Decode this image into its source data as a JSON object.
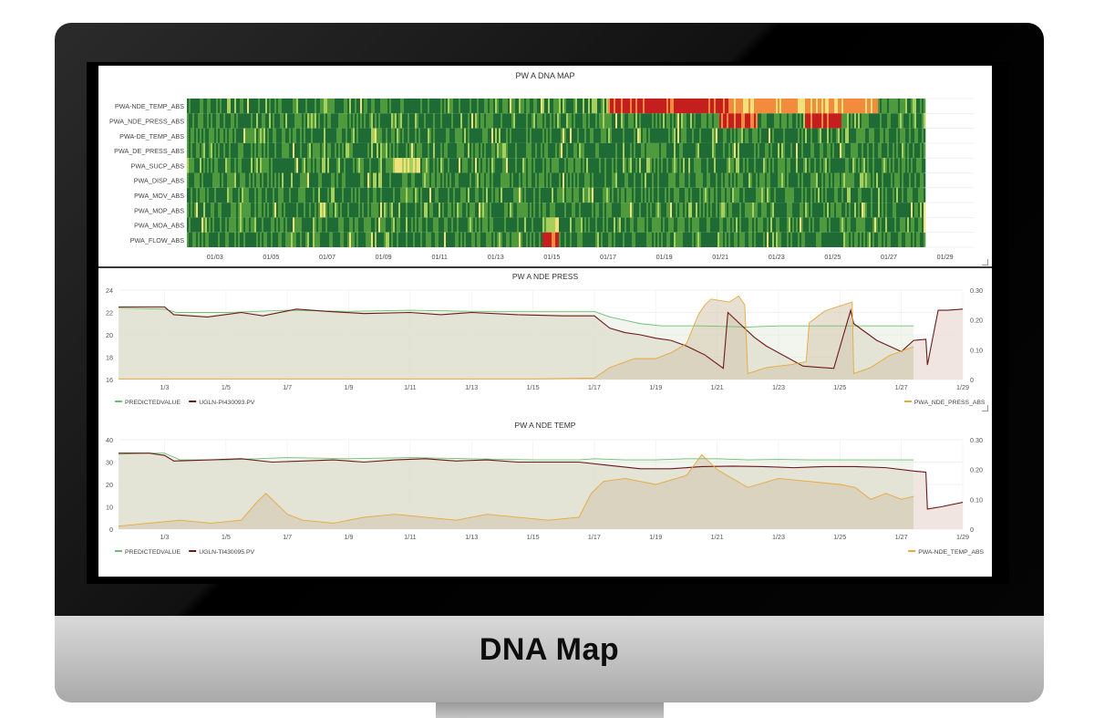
{
  "chin": {
    "label": "DNA Map"
  },
  "heatmap": {
    "title": "PW A DNA MAP",
    "rows": [
      "PWA-NDE_TEMP_ABS",
      "PWA_NDE_PRESS_ABS",
      "PWA-DE_TEMP_ABS",
      "PWA_DE_PRESS_ABS",
      "PWA_SUCP_ABS",
      "PWA_DISP_ABS",
      "PWA_MOV_ABS",
      "PWA_MOP_ABS",
      "PWA_MOA_ABS",
      "PWA_FLOW_ABS"
    ],
    "x_ticks": [
      "01/03",
      "01/05",
      "01/07",
      "01/09",
      "01/11",
      "01/13",
      "01/15",
      "01/17",
      "01/19",
      "01/21",
      "01/23",
      "01/25",
      "01/27",
      "01/29"
    ]
  },
  "chart_data": [
    {
      "type": "heatmap",
      "title": "PW A DNA MAP",
      "y_categories": [
        "PWA-NDE_TEMP_ABS",
        "PWA_NDE_PRESS_ABS",
        "PWA-DE_TEMP_ABS",
        "PWA_DE_PRESS_ABS",
        "PWA_SUCP_ABS",
        "PWA_DISP_ABS",
        "PWA_MOV_ABS",
        "PWA_MOP_ABS",
        "PWA_MOA_ABS",
        "PWA_FLOW_ABS"
      ],
      "x_ticks": [
        "01/03",
        "01/05",
        "01/07",
        "01/09",
        "01/11",
        "01/13",
        "01/15",
        "01/17",
        "01/19",
        "01/21",
        "01/23",
        "01/25",
        "01/27",
        "01/29"
      ],
      "x_range": [
        "01/02",
        "01/28"
      ],
      "color_scale": [
        "#1e6b35",
        "#4f9a3c",
        "#a8cf5a",
        "#f2e07a",
        "#f28c3c",
        "#c41e1e"
      ],
      "hot_spots": [
        {
          "row": 0,
          "x_start": 17.0,
          "x_end": 21.3,
          "level": 5
        },
        {
          "row": 0,
          "x_start": 21.3,
          "x_end": 23.3,
          "level": 4
        },
        {
          "row": 0,
          "x_start": 23.3,
          "x_end": 26.6,
          "level": 4
        },
        {
          "row": 1,
          "x_start": 20.9,
          "x_end": 22.3,
          "level": 5
        },
        {
          "row": 1,
          "x_start": 24.0,
          "x_end": 25.3,
          "level": 5
        },
        {
          "row": 4,
          "x_start": 9.3,
          "x_end": 10.3,
          "level": 3
        },
        {
          "row": 9,
          "x_start": 14.6,
          "x_end": 15.2,
          "level": 5
        },
        {
          "row": 8,
          "x_start": 14.6,
          "x_end": 15.2,
          "level": 2
        }
      ]
    },
    {
      "type": "line",
      "title": "PW A NDE PRESS",
      "x_ticks": [
        "1/3",
        "1/5",
        "1/7",
        "1/9",
        "1/11",
        "1/13",
        "1/15",
        "1/17",
        "1/19",
        "1/21",
        "1/23",
        "1/25",
        "1/27",
        "1/29"
      ],
      "ylim": [
        16,
        24
      ],
      "y_ticks": [
        16,
        18,
        20,
        22,
        24
      ],
      "y2lim": [
        0,
        0.3
      ],
      "y2_ticks": [
        "0",
        "0.10",
        "0.20",
        "0.30"
      ],
      "legend_left": [
        "PREDICTEDVALUE",
        "UGLN-PI430093.PV"
      ],
      "legend_right": [
        "PWA_NDE_PRESS_ABS"
      ],
      "series": [
        {
          "name": "PREDICTEDVALUE",
          "axis": "left",
          "color": "#6fbf6f",
          "x": [
            1.5,
            3.0,
            3.4,
            5,
            7,
            9,
            11,
            13,
            15,
            17,
            17.5,
            18,
            18.5,
            19.2,
            20.5,
            22,
            23,
            24,
            25,
            26,
            27.4
          ],
          "y": [
            22.4,
            22.3,
            22.0,
            22.0,
            22.2,
            22.1,
            22.2,
            22.1,
            22.1,
            22.1,
            21.6,
            21.3,
            21.0,
            20.8,
            20.8,
            20.7,
            20.8,
            20.8,
            20.8,
            20.8,
            20.8
          ]
        },
        {
          "name": "UGLN-PI430093.PV",
          "axis": "left",
          "color": "#6b1a1a",
          "x": [
            1.5,
            3.0,
            3.3,
            4.4,
            5.5,
            6.2,
            7.3,
            8.3,
            9.5,
            11,
            12,
            13,
            14.5,
            16,
            17,
            17.5,
            18.0,
            18.5,
            19,
            19.5,
            20,
            20.6,
            21.2,
            21.35,
            22.2,
            22.6,
            23.8,
            24.8,
            25.35,
            25.45,
            26.2,
            27.0,
            27.4,
            27.8,
            27.85,
            28.2,
            28.3,
            28.5,
            29.0
          ],
          "y": [
            22.5,
            22.5,
            21.8,
            21.6,
            22.0,
            21.7,
            22.3,
            22.1,
            21.9,
            22.0,
            21.8,
            22.0,
            21.8,
            21.7,
            21.7,
            20.6,
            20.2,
            20.0,
            19.7,
            19.5,
            19.0,
            18.2,
            17.0,
            22.0,
            19.8,
            19.0,
            17.2,
            17.0,
            22.2,
            21.0,
            19.5,
            18.5,
            19.5,
            19.6,
            17.3,
            22.2,
            22.2,
            22.2,
            22.3
          ]
        },
        {
          "name": "PWA_NDE_PRESS_ABS",
          "axis": "right",
          "color": "#e8a93a",
          "x": [
            1.5,
            5,
            10,
            15,
            17.0,
            17.5,
            18.3,
            19,
            19.5,
            20,
            20.4,
            20.6,
            20.8,
            21.4,
            21.7,
            21.9,
            22.0,
            22.6,
            23.4,
            23.9,
            24.0,
            24.5,
            25.1,
            25.4,
            25.45,
            26.0,
            26.6,
            27.4
          ],
          "y": [
            0.002,
            0.002,
            0.002,
            0.002,
            0.005,
            0.04,
            0.07,
            0.07,
            0.09,
            0.12,
            0.22,
            0.25,
            0.27,
            0.26,
            0.28,
            0.25,
            0.02,
            0.04,
            0.05,
            0.06,
            0.19,
            0.23,
            0.25,
            0.26,
            0.02,
            0.04,
            0.08,
            0.11
          ]
        }
      ]
    },
    {
      "type": "line",
      "title": "PW A NDE TEMP",
      "x_ticks": [
        "1/3",
        "1/5",
        "1/7",
        "1/9",
        "1/11",
        "1/13",
        "1/15",
        "1/17",
        "1/19",
        "1/21",
        "1/23",
        "1/25",
        "1/27",
        "1/29"
      ],
      "ylim": [
        0,
        40
      ],
      "y_ticks": [
        0,
        10,
        20,
        30,
        40
      ],
      "y2lim": [
        0,
        0.3
      ],
      "y2_ticks": [
        "0",
        "0.10",
        "0.20",
        "0.30"
      ],
      "legend_left": [
        "PREDICTEDVALUE",
        "UGLN-TI430095.PV"
      ],
      "legend_right": [
        "PWA-NDE_TEMP_ABS"
      ],
      "series": [
        {
          "name": "PREDICTEDVALUE",
          "axis": "left",
          "color": "#6fbf6f",
          "x": [
            1.5,
            2.5,
            3.0,
            3.5,
            5,
            7,
            9,
            11,
            13,
            15,
            16.5,
            17.0,
            18,
            19,
            20,
            21,
            22,
            23,
            24,
            25,
            26,
            27.4
          ],
          "y": [
            33.5,
            34,
            34,
            31,
            31,
            32,
            31.5,
            32,
            31.5,
            31,
            31,
            31.5,
            31,
            31,
            31.5,
            31.5,
            31,
            31.2,
            31,
            31,
            31,
            31
          ]
        },
        {
          "name": "UGLN-TI430095.PV",
          "axis": "left",
          "color": "#6b1a1a",
          "x": [
            1.5,
            2.5,
            3.0,
            3.3,
            4.5,
            5.5,
            6.5,
            7.5,
            8.5,
            9.5,
            10.5,
            11.5,
            12.5,
            13.5,
            14.5,
            15.5,
            16.5,
            17.5,
            18.5,
            19.5,
            20.5,
            21.5,
            22.5,
            23.5,
            24.5,
            25.5,
            26.5,
            27.4,
            27.8,
            27.85,
            28.3,
            29.0
          ],
          "y": [
            34,
            34,
            33,
            30.5,
            31,
            31.5,
            30,
            30.5,
            31,
            30,
            31,
            31.5,
            30.5,
            31,
            30,
            30,
            30,
            28.5,
            27,
            27,
            28,
            28.2,
            28,
            27.5,
            28,
            28,
            27.5,
            26,
            25.5,
            9,
            10,
            12
          ]
        },
        {
          "name": "PWA-NDE_TEMP_ABS",
          "axis": "right",
          "color": "#e8a93a",
          "x": [
            1.5,
            2.5,
            3.5,
            4.5,
            5.5,
            6.0,
            6.3,
            7.0,
            7.5,
            8.5,
            9.5,
            10.5,
            11.5,
            12.5,
            13.5,
            14.5,
            15.5,
            16.5,
            16.9,
            17.3,
            18,
            19,
            20,
            20.5,
            21,
            21.5,
            22,
            23,
            24,
            25,
            25.5,
            26,
            26.5,
            27,
            27.4
          ],
          "y": [
            0.01,
            0.02,
            0.03,
            0.02,
            0.03,
            0.09,
            0.12,
            0.05,
            0.03,
            0.02,
            0.04,
            0.05,
            0.04,
            0.03,
            0.05,
            0.04,
            0.03,
            0.04,
            0.12,
            0.16,
            0.17,
            0.15,
            0.18,
            0.25,
            0.2,
            0.17,
            0.14,
            0.17,
            0.16,
            0.15,
            0.14,
            0.1,
            0.12,
            0.1,
            0.11
          ]
        }
      ]
    }
  ],
  "colors": {
    "band_primary": "#e0d9cf",
    "band_secondary": "#d3c6ad",
    "pink_tail": "#efe2df"
  }
}
